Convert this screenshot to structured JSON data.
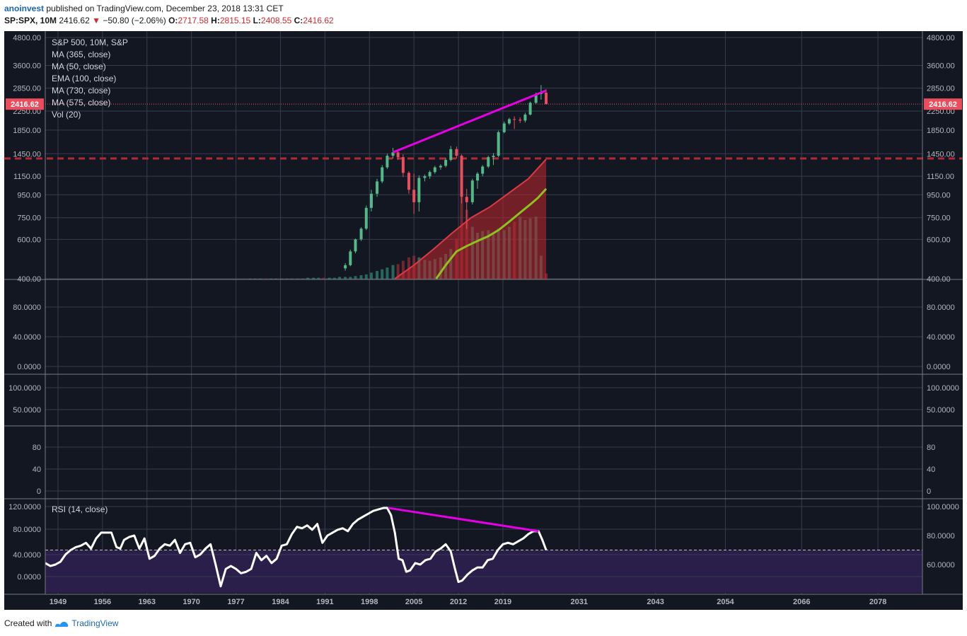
{
  "header": {
    "user": "anoinvest",
    "published": "published on TradingView.com, December 23, 2018 13:31 CET",
    "symbol": "SP:SPX, 10M",
    "price": "2416.62",
    "change": "−50.80 (−2.06%)",
    "o_label": "O:",
    "o_value": "2717.58",
    "h_label": "H:",
    "h_value": "2815.15",
    "l_label": "L:",
    "l_value": "2408.55",
    "c_label": "C:",
    "c_value": "2416.62"
  },
  "footer": {
    "created_with": "Created with",
    "brand": "TradingView"
  },
  "colors": {
    "background": "#131722",
    "grid": "#363c4e",
    "up": "#53b987",
    "down": "#eb4d5c",
    "trendline": "#e600e6",
    "support": "#b22833",
    "ma_green": "#8ec21f",
    "rsi_line": "#ffffff",
    "rsi_fill": "#2a1f4a",
    "axis_text": "#b2b5be",
    "price_label_bg": "#eb4d5c"
  },
  "chart_data": {
    "type": "candlestick",
    "title": "S&P 500, 10M, S&P",
    "legend": [
      "MA (365, close)",
      "MA (50, close)",
      "EMA (100, close)",
      "MA (730, close)",
      "MA (575, close)",
      "Vol (20)"
    ],
    "x_ticks": [
      "1949",
      "1956",
      "1963",
      "1970",
      "1977",
      "1984",
      "1991",
      "1998",
      "2005",
      "2012",
      "2019",
      "2031",
      "2043",
      "2054",
      "2066",
      "2078"
    ],
    "x_range": [
      1947,
      2085
    ],
    "y_scale": "log",
    "y_ticks": [
      "4800.00",
      "3600.00",
      "2850.00",
      "2250.00",
      "1850.00",
      "1450.00",
      "1150.00",
      "950.00",
      "750.00",
      "600.00",
      "400.00"
    ],
    "y_range": [
      400,
      4800
    ],
    "last_price": 2416.62,
    "last_price_label": "2416.62",
    "support_level": 1380,
    "candles": [
      {
        "t": 1994.2,
        "o": 445,
        "h": 470,
        "l": 435,
        "c": 460
      },
      {
        "t": 1995.0,
        "o": 460,
        "h": 540,
        "l": 455,
        "c": 530
      },
      {
        "t": 1995.8,
        "o": 530,
        "h": 605,
        "l": 520,
        "c": 600
      },
      {
        "t": 1996.7,
        "o": 600,
        "h": 680,
        "l": 590,
        "c": 670
      },
      {
        "t": 1997.5,
        "o": 670,
        "h": 850,
        "l": 660,
        "c": 830
      },
      {
        "t": 1998.3,
        "o": 830,
        "h": 1000,
        "l": 800,
        "c": 960
      },
      {
        "t": 1999.2,
        "o": 960,
        "h": 1120,
        "l": 930,
        "c": 1090
      },
      {
        "t": 2000.0,
        "o": 1090,
        "h": 1290,
        "l": 1070,
        "c": 1260
      },
      {
        "t": 2000.8,
        "o": 1260,
        "h": 1450,
        "l": 1240,
        "c": 1420
      },
      {
        "t": 2001.7,
        "o": 1420,
        "h": 1540,
        "l": 1380,
        "c": 1470
      },
      {
        "t": 2002.5,
        "o": 1470,
        "h": 1520,
        "l": 1360,
        "c": 1400
      },
      {
        "t": 2003.3,
        "o": 1400,
        "h": 1440,
        "l": 1140,
        "c": 1190
      },
      {
        "t": 2004.2,
        "o": 1190,
        "h": 1210,
        "l": 960,
        "c": 1000
      },
      {
        "t": 2005.0,
        "o": 1000,
        "h": 1180,
        "l": 780,
        "c": 880
      },
      {
        "t": 2005.8,
        "o": 880,
        "h": 1160,
        "l": 800,
        "c": 1130
      },
      {
        "t": 2006.7,
        "o": 1130,
        "h": 1170,
        "l": 1090,
        "c": 1150
      },
      {
        "t": 2007.5,
        "o": 1150,
        "h": 1220,
        "l": 1120,
        "c": 1200
      },
      {
        "t": 2008.3,
        "o": 1200,
        "h": 1280,
        "l": 1180,
        "c": 1260
      },
      {
        "t": 2009.2,
        "o": 1260,
        "h": 1300,
        "l": 1230,
        "c": 1280
      },
      {
        "t": 2010.0,
        "o": 1280,
        "h": 1390,
        "l": 1260,
        "c": 1360
      },
      {
        "t": 2010.8,
        "o": 1360,
        "h": 1570,
        "l": 1340,
        "c": 1520
      },
      {
        "t": 2011.7,
        "o": 1520,
        "h": 1560,
        "l": 1380,
        "c": 1420
      },
      {
        "t": 2012.5,
        "o": 1420,
        "h": 1440,
        "l": 870,
        "c": 930
      },
      {
        "t": 2013.3,
        "o": 930,
        "h": 1010,
        "l": 670,
        "c": 880
      },
      {
        "t": 2014.2,
        "o": 880,
        "h": 1120,
        "l": 860,
        "c": 1100
      },
      {
        "t": 2015.0,
        "o": 1100,
        "h": 1200,
        "l": 1010,
        "c": 1180
      },
      {
        "t": 2015.8,
        "o": 1180,
        "h": 1290,
        "l": 1150,
        "c": 1270
      },
      {
        "t": 2016.7,
        "o": 1270,
        "h": 1420,
        "l": 1250,
        "c": 1400
      },
      {
        "t": 2017.5,
        "o": 1400,
        "h": 1460,
        "l": 1290,
        "c": 1420
      },
      {
        "t": 2018.3,
        "o": 1420,
        "h": 1840,
        "l": 1400,
        "c": 1810
      },
      {
        "t": 2019.2,
        "o": 1810,
        "h": 2020,
        "l": 1790,
        "c": 1980
      },
      {
        "t": 2020.0,
        "o": 1980,
        "h": 2100,
        "l": 1950,
        "c": 2070
      },
      {
        "t": 2020.8,
        "o": 2070,
        "h": 2130,
        "l": 1870,
        "c": 2060
      },
      {
        "t": 2021.7,
        "o": 2060,
        "h": 2110,
        "l": 1990,
        "c": 2040
      },
      {
        "t": 2022.5,
        "o": 2040,
        "h": 2210,
        "l": 2000,
        "c": 2170
      },
      {
        "t": 2023.3,
        "o": 2170,
        "h": 2480,
        "l": 2150,
        "c": 2450
      },
      {
        "t": 2024.2,
        "o": 2450,
        "h": 2720,
        "l": 2420,
        "c": 2680
      },
      {
        "t": 2025.0,
        "o": 2680,
        "h": 2940,
        "l": 2530,
        "c": 2720
      },
      {
        "t": 2025.8,
        "o": 2717.58,
        "h": 2815.15,
        "l": 2408.55,
        "c": 2416.62
      }
    ],
    "volume_scale": "relative (0-1)",
    "volume": [
      {
        "t": 1979.2,
        "v": 0.01,
        "up": true
      },
      {
        "t": 1980.0,
        "v": 0.01,
        "up": true
      },
      {
        "t": 1980.8,
        "v": 0.01,
        "up": true
      },
      {
        "t": 1981.7,
        "v": 0.01,
        "up": false
      },
      {
        "t": 1982.5,
        "v": 0.01,
        "up": true
      },
      {
        "t": 1983.3,
        "v": 0.01,
        "up": true
      },
      {
        "t": 1984.2,
        "v": 0.01,
        "up": true
      },
      {
        "t": 1985.0,
        "v": 0.01,
        "up": true
      },
      {
        "t": 1985.8,
        "v": 0.01,
        "up": true
      },
      {
        "t": 1986.7,
        "v": 0.01,
        "up": true
      },
      {
        "t": 1987.5,
        "v": 0.01,
        "up": true
      },
      {
        "t": 1988.3,
        "v": 0.02,
        "up": true
      },
      {
        "t": 1989.2,
        "v": 0.02,
        "up": true
      },
      {
        "t": 1990.0,
        "v": 0.02,
        "up": true
      },
      {
        "t": 1990.8,
        "v": 0.02,
        "up": false
      },
      {
        "t": 1991.7,
        "v": 0.02,
        "up": true
      },
      {
        "t": 1992.5,
        "v": 0.02,
        "up": true
      },
      {
        "t": 1993.3,
        "v": 0.03,
        "up": true
      },
      {
        "t": 1994.2,
        "v": 0.03,
        "up": true
      },
      {
        "t": 1995.0,
        "v": 0.03,
        "up": true
      },
      {
        "t": 1995.8,
        "v": 0.04,
        "up": true
      },
      {
        "t": 1996.7,
        "v": 0.05,
        "up": true
      },
      {
        "t": 1997.5,
        "v": 0.06,
        "up": true
      },
      {
        "t": 1998.3,
        "v": 0.08,
        "up": true
      },
      {
        "t": 1999.2,
        "v": 0.1,
        "up": true
      },
      {
        "t": 2000.0,
        "v": 0.12,
        "up": true
      },
      {
        "t": 2000.8,
        "v": 0.14,
        "up": true
      },
      {
        "t": 2001.7,
        "v": 0.17,
        "up": true
      },
      {
        "t": 2002.5,
        "v": 0.18,
        "up": false
      },
      {
        "t": 2003.3,
        "v": 0.22,
        "up": false
      },
      {
        "t": 2004.2,
        "v": 0.26,
        "up": false
      },
      {
        "t": 2005.0,
        "v": 0.28,
        "up": false
      },
      {
        "t": 2005.8,
        "v": 0.26,
        "up": true
      },
      {
        "t": 2006.7,
        "v": 0.23,
        "up": true
      },
      {
        "t": 2007.5,
        "v": 0.22,
        "up": true
      },
      {
        "t": 2008.3,
        "v": 0.24,
        "up": true
      },
      {
        "t": 2009.2,
        "v": 0.26,
        "up": true
      },
      {
        "t": 2010.0,
        "v": 0.3,
        "up": true
      },
      {
        "t": 2010.8,
        "v": 0.36,
        "up": true
      },
      {
        "t": 2011.7,
        "v": 0.48,
        "up": false
      },
      {
        "t": 2012.5,
        "v": 0.97,
        "up": false
      },
      {
        "t": 2013.3,
        "v": 0.82,
        "up": false
      },
      {
        "t": 2014.2,
        "v": 0.62,
        "up": true
      },
      {
        "t": 2015.0,
        "v": 0.55,
        "up": true
      },
      {
        "t": 2015.8,
        "v": 0.57,
        "up": true
      },
      {
        "t": 2016.7,
        "v": 0.58,
        "up": true
      },
      {
        "t": 2017.5,
        "v": 0.55,
        "up": true
      },
      {
        "t": 2018.3,
        "v": 0.6,
        "up": true
      },
      {
        "t": 2019.2,
        "v": 0.58,
        "up": true
      },
      {
        "t": 2020.0,
        "v": 0.62,
        "up": true
      },
      {
        "t": 2020.8,
        "v": 0.68,
        "up": false
      },
      {
        "t": 2021.7,
        "v": 0.74,
        "up": true
      },
      {
        "t": 2022.5,
        "v": 0.7,
        "up": true
      },
      {
        "t": 2023.3,
        "v": 0.72,
        "up": true
      },
      {
        "t": 2024.2,
        "v": 0.74,
        "up": true
      },
      {
        "t": 2025.0,
        "v": 0.28,
        "up": true
      },
      {
        "t": 2025.8,
        "v": 0.07,
        "up": false
      }
    ],
    "ma_band": [
      {
        "t": 2002.0,
        "v": 400
      },
      {
        "t": 2005.0,
        "v": 460
      },
      {
        "t": 2008.0,
        "v": 540
      },
      {
        "t": 2011.0,
        "v": 640
      },
      {
        "t": 2014.0,
        "v": 750
      },
      {
        "t": 2017.0,
        "v": 840
      },
      {
        "t": 2020.0,
        "v": 970
      },
      {
        "t": 2023.0,
        "v": 1120
      },
      {
        "t": 2025.8,
        "v": 1370
      }
    ],
    "ma_green": [
      {
        "t": 2008.5,
        "v": 400
      },
      {
        "t": 2010.0,
        "v": 460
      },
      {
        "t": 2011.7,
        "v": 530
      },
      {
        "t": 2013.3,
        "v": 560
      },
      {
        "t": 2015.0,
        "v": 590
      },
      {
        "t": 2016.7,
        "v": 620
      },
      {
        "t": 2018.3,
        "v": 660
      },
      {
        "t": 2020.0,
        "v": 720
      },
      {
        "t": 2021.7,
        "v": 790
      },
      {
        "t": 2023.3,
        "v": 860
      },
      {
        "t": 2024.5,
        "v": 920
      },
      {
        "t": 2025.8,
        "v": 1010
      }
    ],
    "price_trendline": [
      {
        "t": 2001.7,
        "v": 1470
      },
      {
        "t": 2025.8,
        "v": 2780
      }
    ],
    "panes": [
      {
        "name": "blank-1",
        "y_ticks": [
          "80.0000",
          "40.0000",
          "0.0000"
        ]
      },
      {
        "name": "blank-2",
        "y_ticks": [
          "100.0000",
          "50.0000"
        ]
      },
      {
        "name": "blank-3",
        "y_ticks": [
          "80",
          "40",
          "0"
        ]
      }
    ],
    "rsi": {
      "label": "RSI (14, close)",
      "left_ticks": [
        "120.0000",
        "80.0000",
        "40.0000",
        "0.0000"
      ],
      "right_ticks": [
        "100.0000",
        "80.0000",
        "60.0000"
      ],
      "level": 70,
      "scale": "right axis units",
      "values": [
        {
          "t": 1947.0,
          "v": 61
        },
        {
          "t": 1947.8,
          "v": 59
        },
        {
          "t": 1948.6,
          "v": 60
        },
        {
          "t": 1949.4,
          "v": 62
        },
        {
          "t": 1950.2,
          "v": 67
        },
        {
          "t": 1951.0,
          "v": 70
        },
        {
          "t": 1951.8,
          "v": 72
        },
        {
          "t": 1952.6,
          "v": 73
        },
        {
          "t": 1953.4,
          "v": 75
        },
        {
          "t": 1954.2,
          "v": 71
        },
        {
          "t": 1955.0,
          "v": 78
        },
        {
          "t": 1955.8,
          "v": 82
        },
        {
          "t": 1956.6,
          "v": 82
        },
        {
          "t": 1957.4,
          "v": 82
        },
        {
          "t": 1958.2,
          "v": 72
        },
        {
          "t": 1958.8,
          "v": 71
        },
        {
          "t": 1959.4,
          "v": 77
        },
        {
          "t": 1960.2,
          "v": 79
        },
        {
          "t": 1961.0,
          "v": 80
        },
        {
          "t": 1961.8,
          "v": 71
        },
        {
          "t": 1962.6,
          "v": 78
        },
        {
          "t": 1963.4,
          "v": 64
        },
        {
          "t": 1964.2,
          "v": 66
        },
        {
          "t": 1965.0,
          "v": 71
        },
        {
          "t": 1965.8,
          "v": 74
        },
        {
          "t": 1966.6,
          "v": 73
        },
        {
          "t": 1967.4,
          "v": 77
        },
        {
          "t": 1968.2,
          "v": 68
        },
        {
          "t": 1969.0,
          "v": 74
        },
        {
          "t": 1969.8,
          "v": 75
        },
        {
          "t": 1970.6,
          "v": 65
        },
        {
          "t": 1971.4,
          "v": 67
        },
        {
          "t": 1972.2,
          "v": 71
        },
        {
          "t": 1973.0,
          "v": 74
        },
        {
          "t": 1973.8,
          "v": 60
        },
        {
          "t": 1974.6,
          "v": 45
        },
        {
          "t": 1975.4,
          "v": 57
        },
        {
          "t": 1976.2,
          "v": 59
        },
        {
          "t": 1977.0,
          "v": 57
        },
        {
          "t": 1977.8,
          "v": 54
        },
        {
          "t": 1978.6,
          "v": 55
        },
        {
          "t": 1979.4,
          "v": 57
        },
        {
          "t": 1980.2,
          "v": 68
        },
        {
          "t": 1981.0,
          "v": 63
        },
        {
          "t": 1981.8,
          "v": 66
        },
        {
          "t": 1982.6,
          "v": 61
        },
        {
          "t": 1983.4,
          "v": 64
        },
        {
          "t": 1984.2,
          "v": 73
        },
        {
          "t": 1985.0,
          "v": 74
        },
        {
          "t": 1985.8,
          "v": 81
        },
        {
          "t": 1986.6,
          "v": 86
        },
        {
          "t": 1987.4,
          "v": 85
        },
        {
          "t": 1988.2,
          "v": 87
        },
        {
          "t": 1989.0,
          "v": 84
        },
        {
          "t": 1989.8,
          "v": 88
        },
        {
          "t": 1990.6,
          "v": 75
        },
        {
          "t": 1991.4,
          "v": 80
        },
        {
          "t": 1992.2,
          "v": 82
        },
        {
          "t": 1993.0,
          "v": 84
        },
        {
          "t": 1993.8,
          "v": 85
        },
        {
          "t": 1994.6,
          "v": 83
        },
        {
          "t": 1995.4,
          "v": 88
        },
        {
          "t": 1996.2,
          "v": 91
        },
        {
          "t": 1997.0,
          "v": 93
        },
        {
          "t": 1997.8,
          "v": 95
        },
        {
          "t": 1998.6,
          "v": 97
        },
        {
          "t": 1999.4,
          "v": 98
        },
        {
          "t": 2000.2,
          "v": 99
        },
        {
          "t": 2000.8,
          "v": 99
        },
        {
          "t": 2001.4,
          "v": 94
        },
        {
          "t": 2002.0,
          "v": 82
        },
        {
          "t": 2002.6,
          "v": 64
        },
        {
          "t": 2003.2,
          "v": 63
        },
        {
          "t": 2003.8,
          "v": 55
        },
        {
          "t": 2004.4,
          "v": 56
        },
        {
          "t": 2005.2,
          "v": 61
        },
        {
          "t": 2006.0,
          "v": 60
        },
        {
          "t": 2006.8,
          "v": 63
        },
        {
          "t": 2007.6,
          "v": 64
        },
        {
          "t": 2008.4,
          "v": 69
        },
        {
          "t": 2009.2,
          "v": 71
        },
        {
          "t": 2010.0,
          "v": 74
        },
        {
          "t": 2010.8,
          "v": 69
        },
        {
          "t": 2011.4,
          "v": 58
        },
        {
          "t": 2012.0,
          "v": 48
        },
        {
          "t": 2012.6,
          "v": 49
        },
        {
          "t": 2013.4,
          "v": 53
        },
        {
          "t": 2014.2,
          "v": 56
        },
        {
          "t": 2015.0,
          "v": 58
        },
        {
          "t": 2015.8,
          "v": 58
        },
        {
          "t": 2016.6,
          "v": 63
        },
        {
          "t": 2017.4,
          "v": 64
        },
        {
          "t": 2018.2,
          "v": 70
        },
        {
          "t": 2019.0,
          "v": 74
        },
        {
          "t": 2019.8,
          "v": 75
        },
        {
          "t": 2020.6,
          "v": 74
        },
        {
          "t": 2021.4,
          "v": 76
        },
        {
          "t": 2022.2,
          "v": 78
        },
        {
          "t": 2023.0,
          "v": 81
        },
        {
          "t": 2023.8,
          "v": 83
        },
        {
          "t": 2024.6,
          "v": 83
        },
        {
          "t": 2025.2,
          "v": 77
        },
        {
          "t": 2025.8,
          "v": 70
        }
      ],
      "trendline": [
        {
          "t": 2001.0,
          "v": 99
        },
        {
          "t": 2024.6,
          "v": 83
        }
      ]
    }
  }
}
